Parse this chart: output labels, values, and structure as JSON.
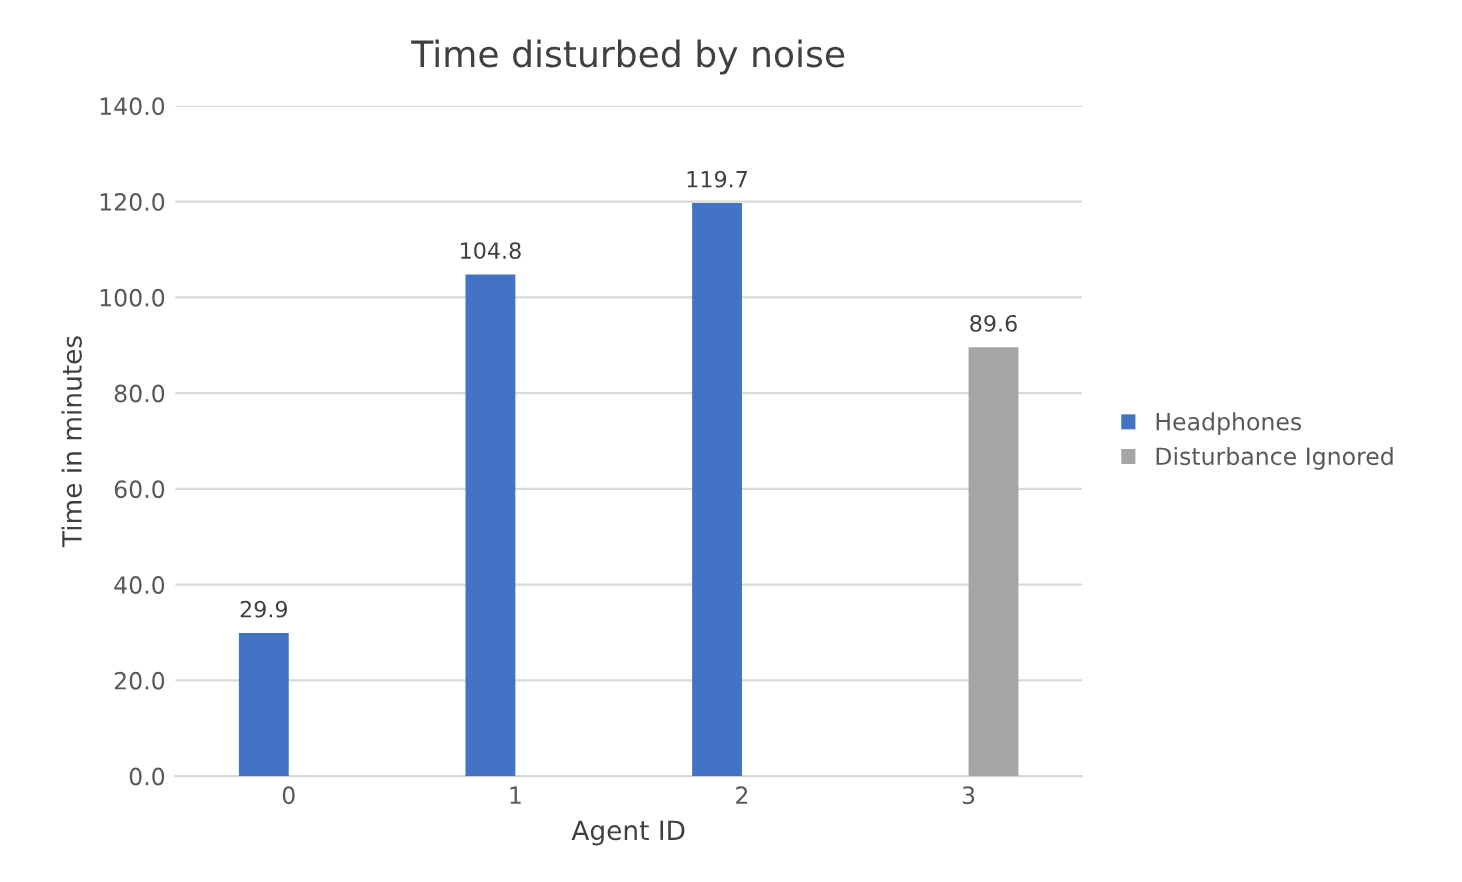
{
  "chart_data": {
    "type": "bar",
    "title": "Time disturbed by noise",
    "xlabel": "Agent ID",
    "ylabel": "Time in minutes",
    "categories": [
      "0",
      "1",
      "2",
      "3"
    ],
    "series": [
      {
        "name": "Headphones",
        "color": "#4472c4",
        "values": [
          29.9,
          104.8,
          119.7,
          null
        ]
      },
      {
        "name": "Disturbance Ignored",
        "color": "#a5a5a5",
        "values": [
          null,
          null,
          null,
          89.6
        ]
      }
    ],
    "ylim": [
      0,
      140
    ],
    "yticks": [
      {
        "value": 0,
        "label": "0.0"
      },
      {
        "value": 20,
        "label": "20.0"
      },
      {
        "value": 40,
        "label": "40.0"
      },
      {
        "value": 60,
        "label": "60.0"
      },
      {
        "value": 80,
        "label": "80.0"
      },
      {
        "value": 100,
        "label": "100.0"
      },
      {
        "value": 120,
        "label": "120.0"
      },
      {
        "value": 140,
        "label": "140.0"
      }
    ],
    "grid": "y",
    "legend": "right",
    "data_labels": true
  }
}
